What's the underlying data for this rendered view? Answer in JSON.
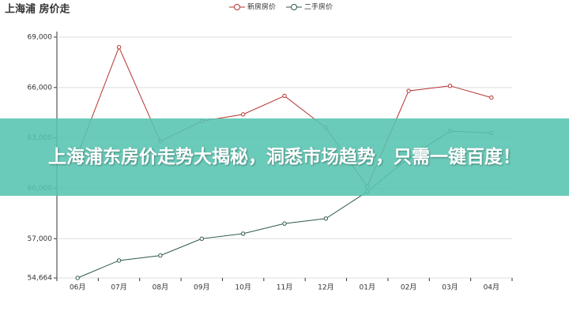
{
  "chart_data": {
    "type": "line",
    "title": "上海浦 房价走",
    "categories": [
      "06月",
      "07月",
      "08月",
      "09月",
      "10月",
      "11月",
      "12月",
      "01月",
      "02月",
      "03月",
      "04月"
    ],
    "series": [
      {
        "name": "新房房价",
        "color": "#b5322e",
        "values": [
          62000,
          68400,
          62800,
          64000,
          64400,
          65500,
          63600,
          60100,
          65800,
          66100,
          65400
        ]
      },
      {
        "name": "二手房价",
        "color": "#2e5a44",
        "values": [
          54664,
          55700,
          56000,
          57000,
          57300,
          57900,
          58200,
          59800,
          61800,
          63400,
          63300
        ]
      }
    ],
    "ylim": [
      54664,
      69000
    ],
    "yticks": [
      {
        "value": 54664,
        "label": "54,664"
      },
      {
        "value": 57000,
        "label": "57,000"
      },
      {
        "value": 60000,
        "label": "60,000"
      },
      {
        "value": 63000,
        "label": "63,000"
      },
      {
        "value": 66000,
        "label": "66,000"
      },
      {
        "value": 69000,
        "label": "69,000"
      }
    ],
    "grid": true,
    "legend": "top"
  },
  "overlay_text": "上海浦东房价走势大揭秘，洞悉市场趋势，只需一键百度！"
}
